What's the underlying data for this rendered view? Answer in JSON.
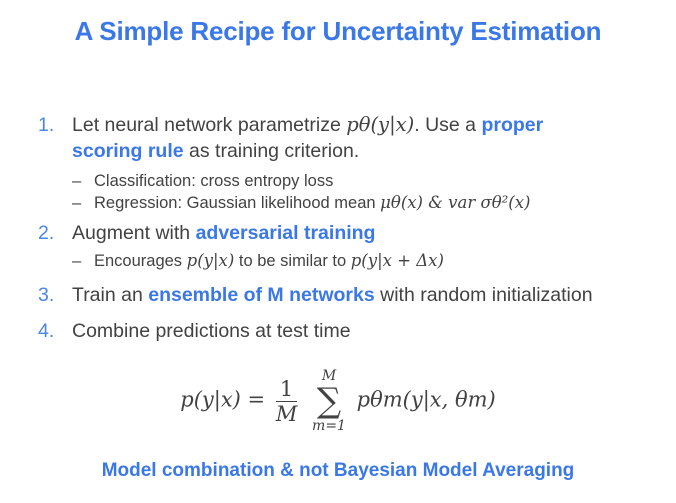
{
  "slide": {
    "title": "A Simple Recipe for Uncertainty Estimation",
    "items": [
      {
        "num": "1.",
        "line1_pre": "Let neural network parametrize ",
        "line1_math": "pθ(y|x)",
        "line1_post": ". Use a ",
        "line1_hl": "proper",
        "line2_hl": "scoring rule",
        "line2_post": " as training criterion.",
        "subs": [
          {
            "text": "Classification: cross entropy loss",
            "math": ""
          },
          {
            "text": "Regression: Gaussian likelihood mean ",
            "math": "μθ(x) & var σθ²(x)"
          }
        ]
      },
      {
        "num": "2.",
        "pre": "Augment with ",
        "hl": "adversarial training",
        "post": "",
        "sub_pre": "Encourages ",
        "sub_math1": "p(y|x)",
        "sub_mid": " to be similar to ",
        "sub_math2": "p(y|x + Δx)"
      },
      {
        "num": "3.",
        "pre": "Train an ",
        "hl": "ensemble of M networks",
        "post": " with random initialization"
      },
      {
        "num": "4.",
        "pre": "Combine predictions at test time",
        "hl": "",
        "post": ""
      }
    ],
    "formula": {
      "lhs": "p(y|x) =",
      "frac_num": "1",
      "frac_den": "M",
      "sum_top": "M",
      "sum_sym": "∑",
      "sum_bot": "m=1",
      "rhs": "pθm(y|x, θm)"
    },
    "footer": "Model combination & not Bayesian Model Averaging"
  }
}
